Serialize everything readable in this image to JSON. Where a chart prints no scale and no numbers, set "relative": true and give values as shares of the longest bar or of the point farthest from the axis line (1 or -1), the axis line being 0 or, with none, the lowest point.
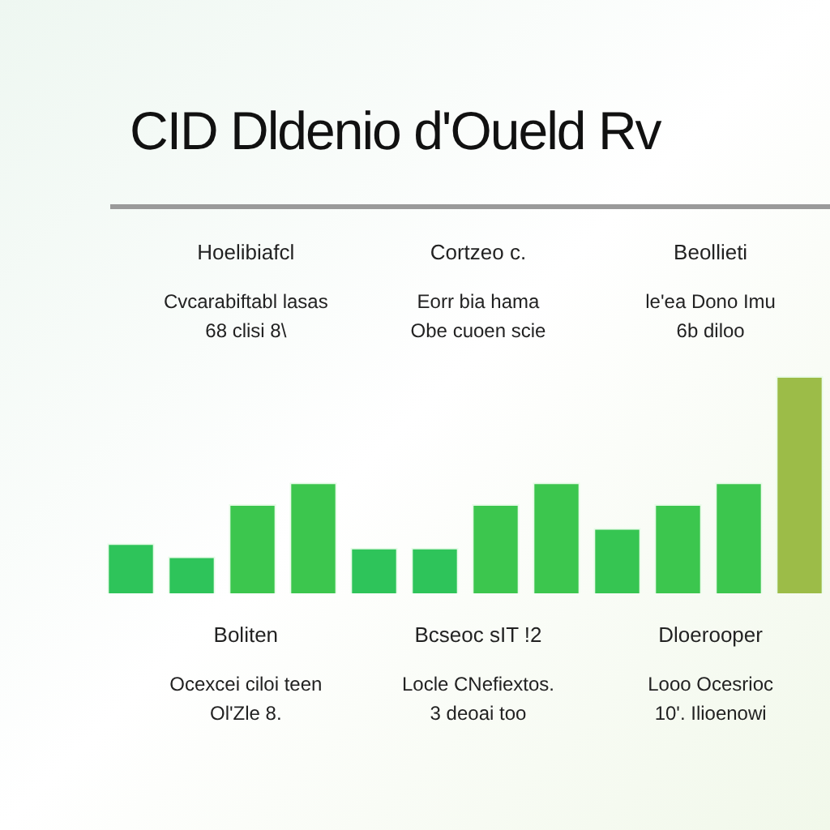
{
  "chart_data": {
    "type": "bar",
    "title": "CID Dldenio d'Oueld Rv",
    "categories": [
      null,
      null,
      null,
      null,
      null,
      null,
      null,
      null,
      null,
      null,
      null,
      null
    ],
    "values": [
      0.23,
      0.17,
      0.41,
      0.51,
      0.21,
      0.21,
      0.41,
      0.51,
      0.3,
      0.41,
      0.51,
      1
    ],
    "colors": [
      "#2ec45a",
      "#2ec45a",
      "#3cc64e",
      "#3cc64e",
      "#2ec45a",
      "#2ec45a",
      "#3cc64e",
      "#3cc64e",
      "#36c552",
      "#3cc64e",
      "#3cc64e",
      "#9cbc48"
    ],
    "relative": true,
    "annotations": [
      "Hoelibiafcl",
      "Cvcarabiftabl lasas",
      "68 clisi 8\\",
      "Cortzeo c.",
      "Eorr bia hama",
      "Obe cuoen scie",
      "Beollieti",
      "le'ea Dono Imu",
      "6b diloo",
      "Boliten",
      "Ocexcei ciloi teen",
      "Ol'Zle 8.",
      "Bcseoc sIT !2",
      "Locle CNefiextos.",
      "3 deoai too",
      "Dloerooper",
      "Looo Ocesrioc",
      "10'. Ilioenowi"
    ]
  }
}
